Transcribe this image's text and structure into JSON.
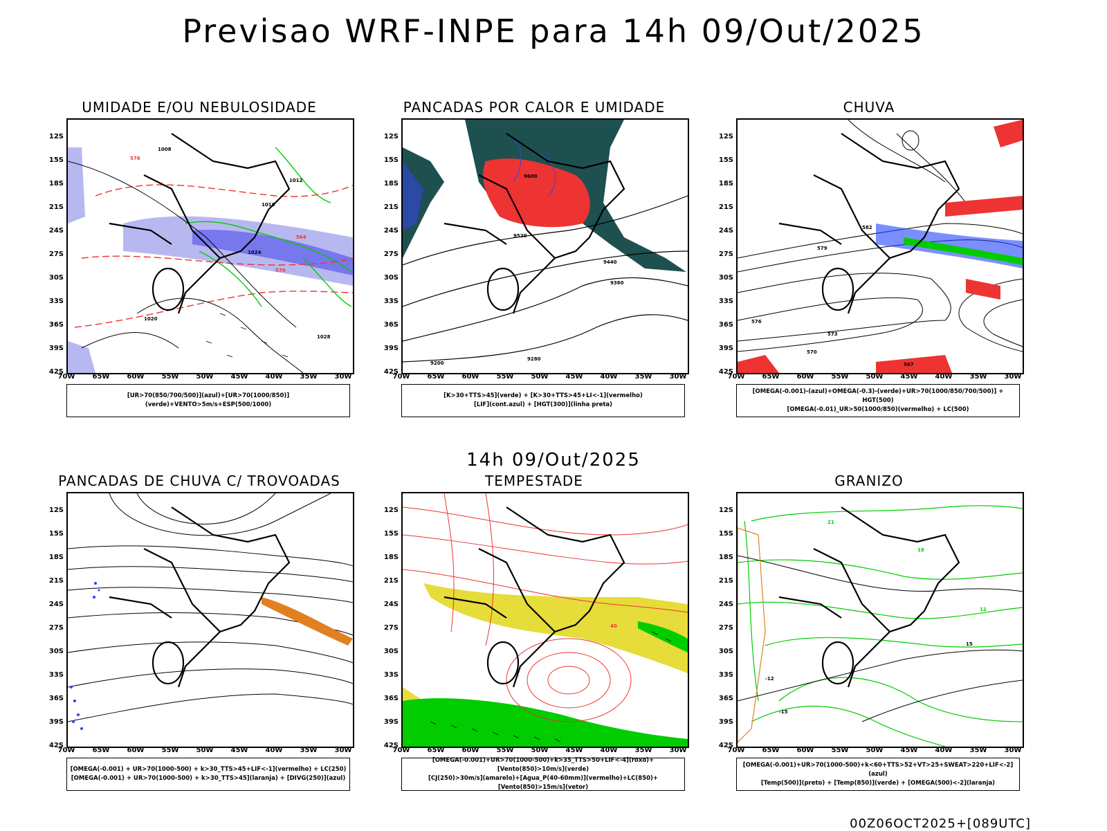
{
  "title": "Previsao WRF-INPE  para 14h 09/Out/2025",
  "mid_title": "14h 09/Out/2025",
  "footer": "00Z06OCT2025+[089UTC]",
  "axes": {
    "lat_labels": [
      "12S",
      "15S",
      "18S",
      "21S",
      "24S",
      "27S",
      "30S",
      "33S",
      "36S",
      "39S",
      "42S"
    ],
    "lon_labels": [
      "70W",
      "65W",
      "60W",
      "55W",
      "50W",
      "45W",
      "40W",
      "35W",
      "30W"
    ]
  },
  "panels": [
    {
      "title": "UMIDADE E/OU NEBULOSIDADE",
      "legend": [
        "[UR>70(850/700/500)](azul)+[UR>70(1000/850)](verde)+VENTO>5m/s+ESP(500/1000)"
      ],
      "contour_labels": [
        "1008",
        "1012",
        "1016",
        "1020",
        "1024",
        "1028",
        "564",
        "570",
        "576"
      ]
    },
    {
      "title": "PANCADAS POR CALOR E UMIDADE",
      "legend": [
        "[K>30+TTS>45](verde) + [K>30+TTS>45+LI<-1](vermelho)",
        "[LIF](cont.azul) + [HGT(300)](linha preta)"
      ],
      "contour_labels": [
        "9600",
        "9520",
        "9440",
        "9360",
        "9280",
        "9200"
      ]
    },
    {
      "title": "CHUVA",
      "legend": [
        "[OMEGA(-0.001)-(azul)+OMEGA(-0.3)-(verde)+UR>70(1000/850/700/500)] + HGT(500)",
        "[OMEGA(-0.01)_UR>50(1000/850)(vermelho) + LC(500)"
      ],
      "contour_labels": [
        "582",
        "576",
        "570",
        "567",
        "573",
        "579"
      ]
    },
    {
      "title": "PANCADAS DE CHUVA C/ TROVOADAS",
      "legend": [
        "[OMEGA(-0.001) + UR>70(1000-500) + k>30_TTS>45+LIF<-1](vermelho) + LC(250)",
        "[OMEGA(-0.001) + UR>70(1000-500) + k>30_TTS>45](laranja) + [DIVG(250)](azul)"
      ],
      "contour_labels": []
    },
    {
      "title": "TEMPESTADE",
      "legend": [
        "[OMEGA(-0.001)+UR>70(1000-500)+k>35_TTS>50+LIF<-4](roxo)+[Vento(850)>10m/s](verde)",
        "[CJ(250)>30m/s](amarelo)+[Agua_P(40-60mm)](vermelho)+LC(850)+[Vento(850)>15m/s](vetor)"
      ],
      "contour_labels": [
        "40"
      ]
    },
    {
      "title": "GRANIZO",
      "legend": [
        "[OMEGA(-0.001)+UR>70(1000-500)+k<60+TTS>52+VT>25+SWEAT>220+LIF<-2](azul)",
        "[Temp(500)](preto) + [Temp(850)](verde) + [OMEGA(500)<-2](laranja)"
      ],
      "contour_labels": [
        "21",
        "18",
        "15",
        "12",
        "-12",
        "-15"
      ]
    }
  ],
  "colors": {
    "humid_blue": "#7777ee",
    "humid_light": "#b8b8f0",
    "green": "#00cc00",
    "red": "#ee3333",
    "dark_teal": "#1e5050",
    "yellow": "#e6dc3a",
    "orange": "#e08020",
    "blue_dots": "#2244ff"
  }
}
